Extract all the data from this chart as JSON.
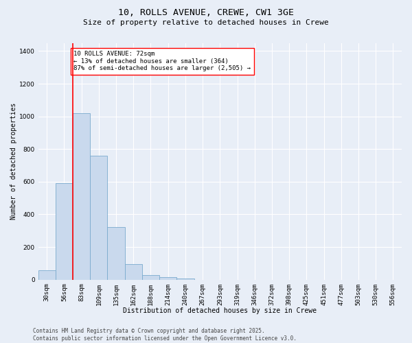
{
  "title_line1": "10, ROLLS AVENUE, CREWE, CW1 3GE",
  "title_line2": "Size of property relative to detached houses in Crewe",
  "xlabel": "Distribution of detached houses by size in Crewe",
  "ylabel": "Number of detached properties",
  "categories": [
    "30sqm",
    "56sqm",
    "83sqm",
    "109sqm",
    "135sqm",
    "162sqm",
    "188sqm",
    "214sqm",
    "240sqm",
    "267sqm",
    "293sqm",
    "319sqm",
    "346sqm",
    "372sqm",
    "398sqm",
    "425sqm",
    "451sqm",
    "477sqm",
    "503sqm",
    "530sqm",
    "556sqm"
  ],
  "values": [
    58,
    590,
    1020,
    760,
    320,
    95,
    27,
    14,
    5,
    0,
    0,
    0,
    0,
    0,
    0,
    0,
    0,
    0,
    0,
    0,
    0
  ],
  "bar_color": "#c9d9ed",
  "bar_edge_color": "#7aaace",
  "vline_color": "red",
  "vline_pos": 1.5,
  "annotation_box_text": "10 ROLLS AVENUE: 72sqm\n← 13% of detached houses are smaller (364)\n87% of semi-detached houses are larger (2,505) →",
  "ylim": [
    0,
    1450
  ],
  "yticks": [
    0,
    200,
    400,
    600,
    800,
    1000,
    1200,
    1400
  ],
  "background_color": "#e8eef7",
  "footer_line1": "Contains HM Land Registry data © Crown copyright and database right 2025.",
  "footer_line2": "Contains public sector information licensed under the Open Government Licence v3.0.",
  "title_fontsize": 9.5,
  "subtitle_fontsize": 8,
  "axis_label_fontsize": 7,
  "tick_fontsize": 6.5,
  "annotation_fontsize": 6.5,
  "footer_fontsize": 5.5,
  "ylabel_fontsize": 7
}
